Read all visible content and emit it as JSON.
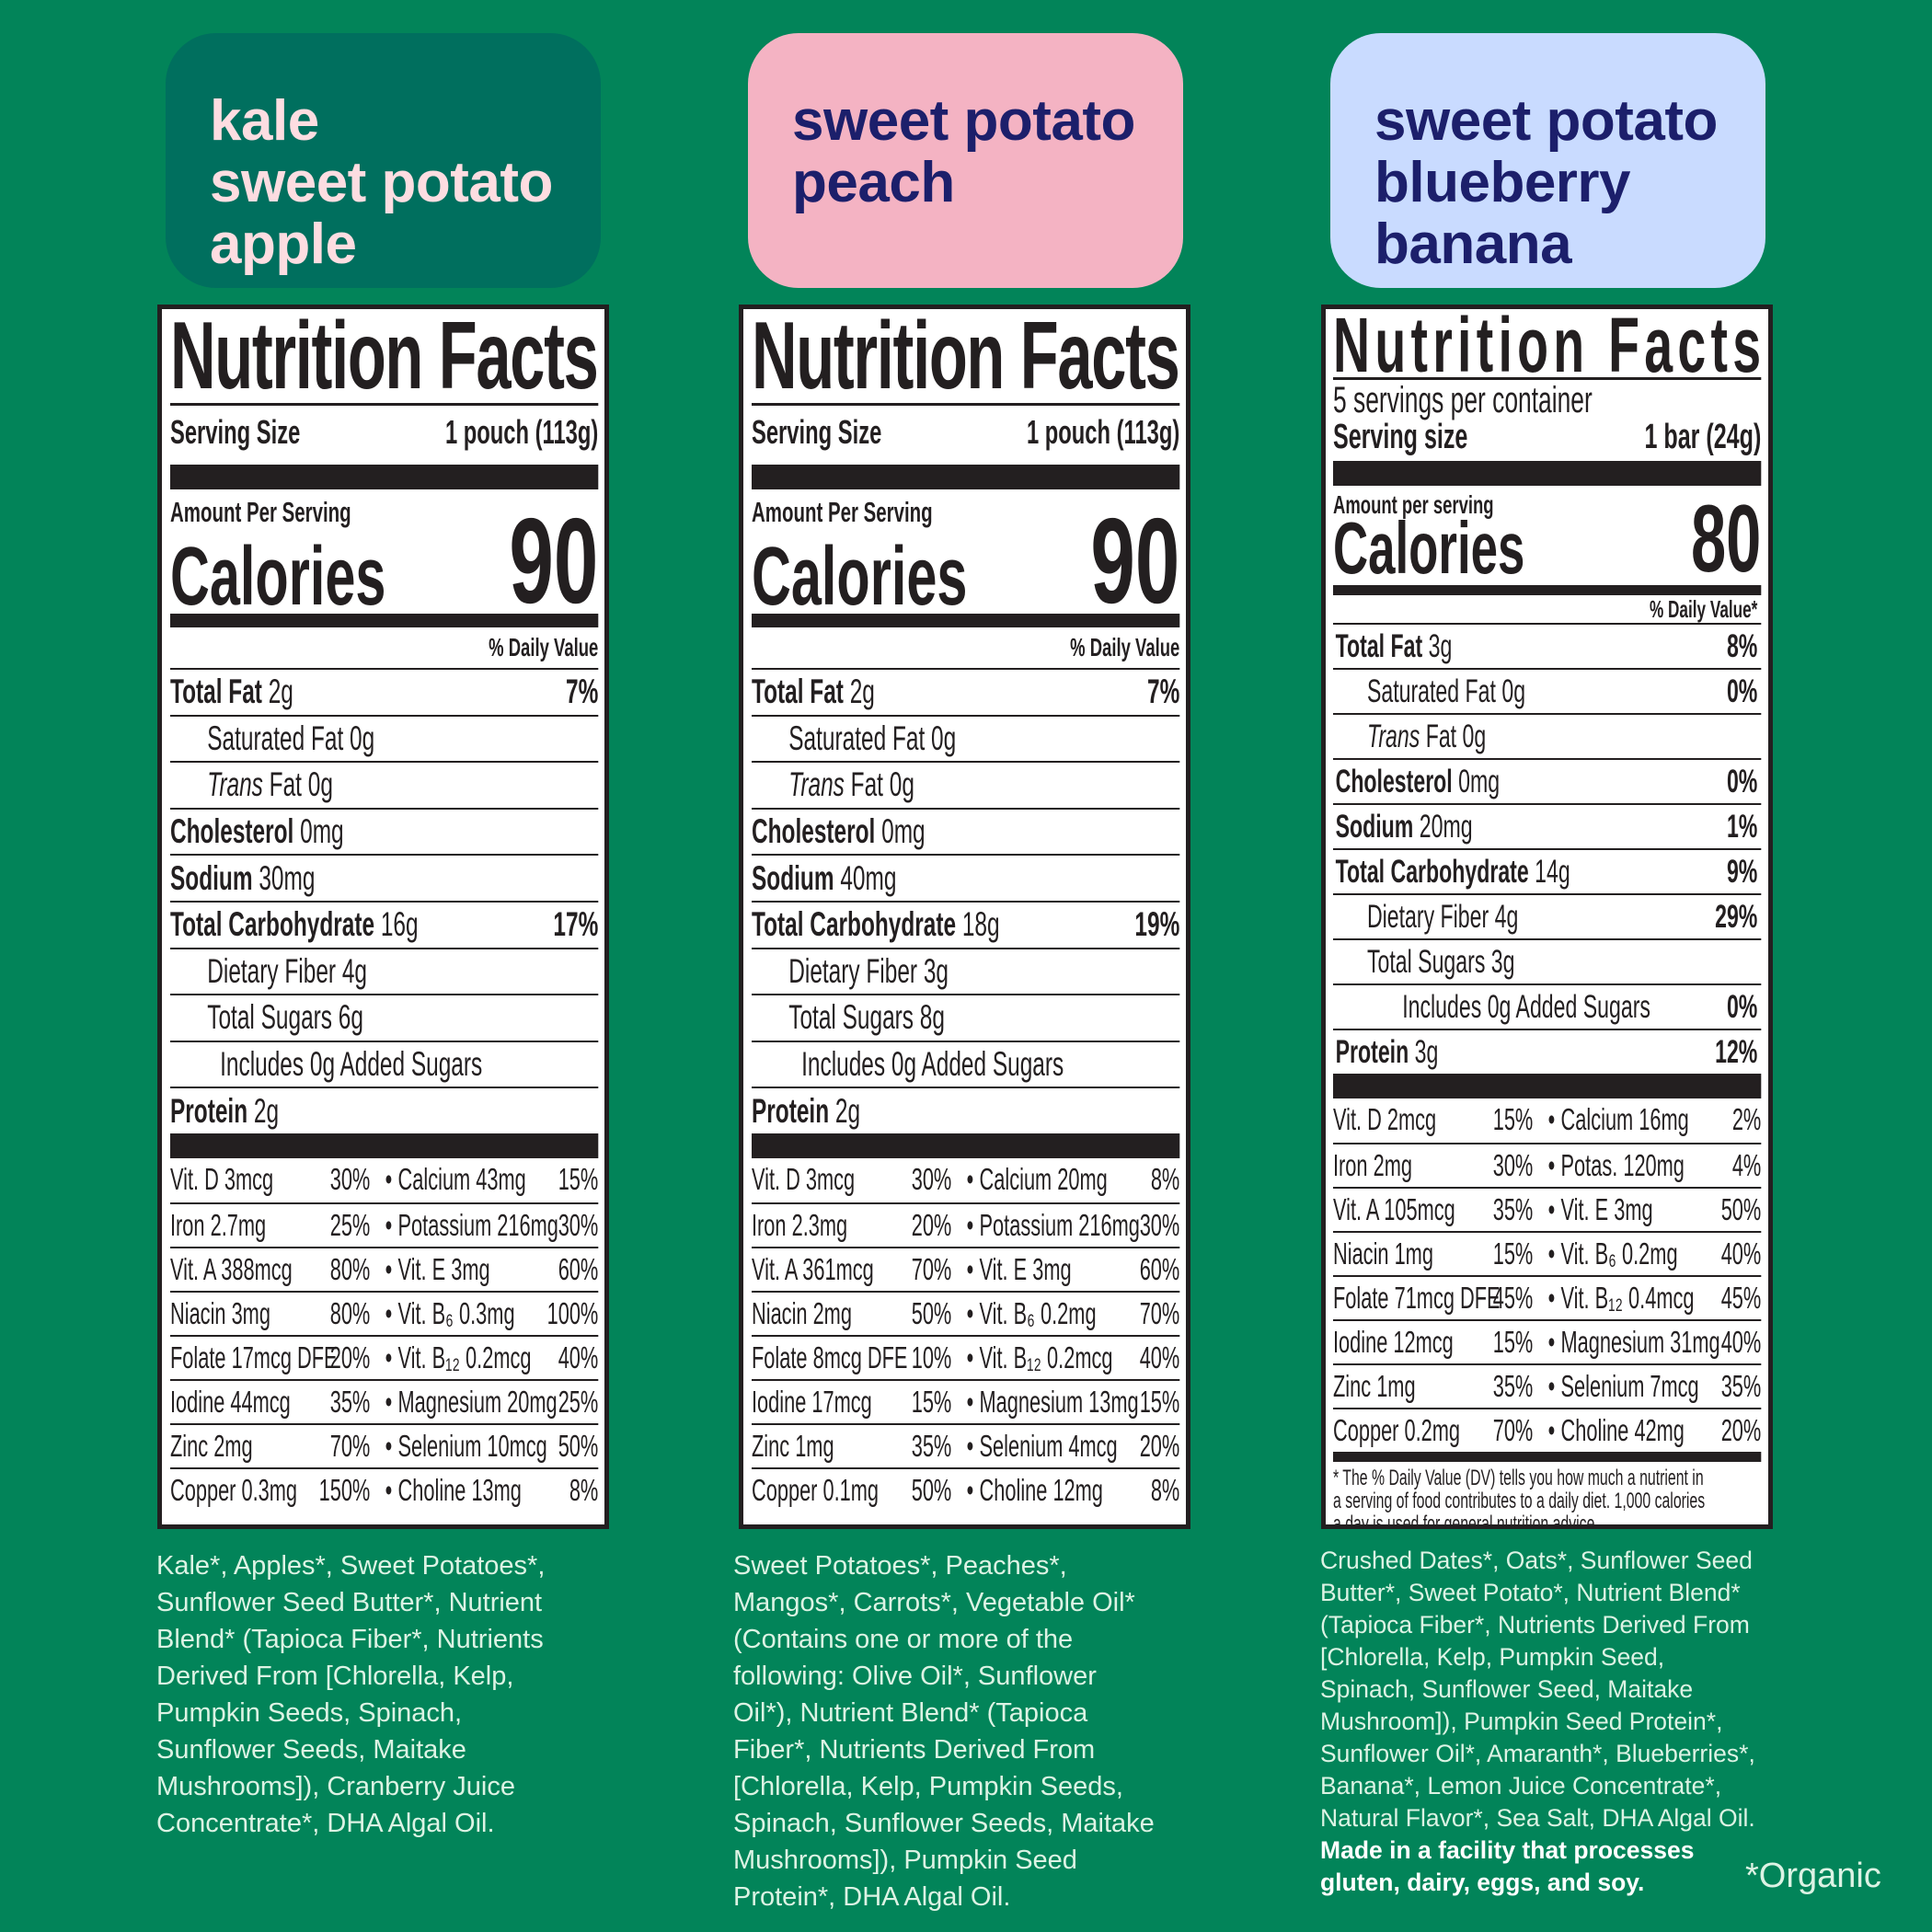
{
  "colors": {
    "background": "#028459",
    "label_ink": "#231f20",
    "ingredient_text": "#dcf3e4"
  },
  "products": [
    {
      "title_lines": [
        "kale",
        "sweet potato",
        "apple"
      ],
      "title_bg": "#006f5e",
      "title_color": "#fddde1",
      "label": {
        "heading": "Nutrition Facts",
        "serving_label": "Serving Size",
        "serving_value": "1 pouch (113g)",
        "amount_label": "Amount Per Serving",
        "calories_label": "Calories",
        "calories": "90",
        "dv_header": "% Daily Value",
        "nutrients": [
          {
            "name": "Total Fat",
            "amount": "2g",
            "dv": "7%",
            "bold": true,
            "level": 0
          },
          {
            "name": "Saturated Fat",
            "amount": "0g",
            "dv": "",
            "level": 1
          },
          {
            "name_italic": "Trans",
            "name": "Fat",
            "amount": "0g",
            "dv": "",
            "level": 1
          },
          {
            "name": "Cholesterol",
            "amount": "0mg",
            "dv": "",
            "bold": true,
            "level": 0
          },
          {
            "name": "Sodium",
            "amount": "30mg",
            "dv": "",
            "bold": true,
            "level": 0
          },
          {
            "name": "Total Carbohydrate",
            "amount": "16g",
            "dv": "17%",
            "bold": true,
            "level": 0
          },
          {
            "name": "Dietary Fiber",
            "amount": "4g",
            "dv": "",
            "level": 1
          },
          {
            "name": "Total Sugars",
            "amount": "6g",
            "dv": "",
            "level": 1
          },
          {
            "name": "Includes 0g Added Sugars",
            "amount": "",
            "dv": "",
            "level": 2
          },
          {
            "name": "Protein",
            "amount": "2g",
            "dv": "",
            "bold": true,
            "level": 0
          }
        ],
        "micros": [
          [
            "Vit. D 3mcg",
            "30%",
            "Calcium 43mg",
            "15%"
          ],
          [
            "Iron 2.7mg",
            "25%",
            "Potassium 216mg",
            "30%"
          ],
          [
            "Vit. A 388mcg",
            "80%",
            "Vit. E 3mg",
            "60%"
          ],
          [
            "Niacin 3mg",
            "80%",
            "Vit. B₆ 0.3mg",
            "100%"
          ],
          [
            "Folate 17mcg DFE",
            "20%",
            "Vit. B₁₂ 0.2mcg",
            "40%"
          ],
          [
            "Iodine 44mcg",
            "35%",
            "Magnesium 20mg",
            "25%"
          ],
          [
            "Zinc 2mg",
            "70%",
            "Selenium 10mcg",
            "50%"
          ],
          [
            "Copper 0.3mg",
            "150%",
            "Choline 13mg",
            "8%"
          ]
        ]
      },
      "ingredients_lines": [
        "Kale*, Apples*, Sweet Potatoes*,",
        "Sunflower Seed Butter*, Nutrient",
        "Blend* (Tapioca Fiber*, Nutrients",
        "Derived From [Chlorella, Kelp,",
        "Pumpkin Seeds, Spinach,",
        "Sunflower Seeds, Maitake",
        "Mushrooms]), Cranberry Juice",
        "Concentrate*, DHA Algal Oil."
      ]
    },
    {
      "title_lines": [
        "sweet potato",
        "peach"
      ],
      "title_bg": "#f4b3c3",
      "title_color": "#1c1f6b",
      "label": {
        "heading": "Nutrition Facts",
        "serving_label": "Serving Size",
        "serving_value": "1 pouch (113g)",
        "amount_label": "Amount Per Serving",
        "calories_label": "Calories",
        "calories": "90",
        "dv_header": "% Daily Value",
        "nutrients": [
          {
            "name": "Total Fat",
            "amount": "2g",
            "dv": "7%",
            "bold": true,
            "level": 0
          },
          {
            "name": "Saturated Fat",
            "amount": "0g",
            "dv": "",
            "level": 1
          },
          {
            "name_italic": "Trans",
            "name": "Fat",
            "amount": "0g",
            "dv": "",
            "level": 1
          },
          {
            "name": "Cholesterol",
            "amount": "0mg",
            "dv": "",
            "bold": true,
            "level": 0
          },
          {
            "name": "Sodium",
            "amount": "40mg",
            "dv": "",
            "bold": true,
            "level": 0
          },
          {
            "name": "Total Carbohydrate",
            "amount": "18g",
            "dv": "19%",
            "bold": true,
            "level": 0
          },
          {
            "name": "Dietary Fiber",
            "amount": "3g",
            "dv": "",
            "level": 1
          },
          {
            "name": "Total Sugars",
            "amount": "8g",
            "dv": "",
            "level": 1
          },
          {
            "name": "Includes 0g Added Sugars",
            "amount": "",
            "dv": "",
            "level": 2
          },
          {
            "name": "Protein",
            "amount": "2g",
            "dv": "",
            "bold": true,
            "level": 0
          }
        ],
        "micros": [
          [
            "Vit. D 3mcg",
            "30%",
            "Calcium 20mg",
            "8%"
          ],
          [
            "Iron 2.3mg",
            "20%",
            "Potassium 216mg",
            "30%"
          ],
          [
            "Vit. A 361mcg",
            "70%",
            "Vit. E 3mg",
            "60%"
          ],
          [
            "Niacin 2mg",
            "50%",
            "Vit. B₆ 0.2mg",
            "70%"
          ],
          [
            "Folate 8mcg DFE",
            "10%",
            "Vit. B₁₂ 0.2mcg",
            "40%"
          ],
          [
            "Iodine 17mcg",
            "15%",
            "Magnesium 13mg",
            "15%"
          ],
          [
            "Zinc 1mg",
            "35%",
            "Selenium 4mcg",
            "20%"
          ],
          [
            "Copper 0.1mg",
            "50%",
            "Choline 12mg",
            "8%"
          ]
        ]
      },
      "ingredients_lines": [
        "Sweet Potatoes*, Peaches*,",
        "Mangos*, Carrots*, Vegetable Oil*",
        "(Contains one or more of the",
        "following: Olive Oil*, Sunflower",
        "Oil*), Nutrient Blend* (Tapioca",
        "Fiber*, Nutrients Derived From",
        "[Chlorella, Kelp, Pumpkin Seeds,",
        "Spinach, Sunflower Seeds, Maitake",
        "Mushrooms]), Pumpkin Seed",
        "Protein*, DHA Algal Oil."
      ]
    },
    {
      "title_lines": [
        "sweet potato",
        "blueberry",
        "banana"
      ],
      "title_bg": "#c9dbff",
      "title_color": "#1c1f6b",
      "label": {
        "heading": "Nutrition Facts",
        "servings_per_container": "5 servings per container",
        "serving_label": "Serving size",
        "serving_value": "1 bar (24g)",
        "amount_label": "Amount per serving",
        "calories_label": "Calories",
        "calories": "80",
        "dv_header": "% Daily Value*",
        "nutrients": [
          {
            "name": "Total Fat",
            "amount": "3g",
            "dv": "8%",
            "bold": true,
            "level": 0
          },
          {
            "name": "Saturated Fat",
            "amount": "0g",
            "dv": "0%",
            "level": 1
          },
          {
            "name_italic": "Trans",
            "name": "Fat",
            "amount": "0g",
            "dv": "",
            "level": 1
          },
          {
            "name": "Cholesterol",
            "amount": "0mg",
            "dv": "0%",
            "bold": true,
            "level": 0
          },
          {
            "name": "Sodium",
            "amount": "20mg",
            "dv": "1%",
            "bold": true,
            "level": 0
          },
          {
            "name": "Total Carbohydrate",
            "amount": "14g",
            "dv": "9%",
            "bold": true,
            "level": 0
          },
          {
            "name": "Dietary Fiber",
            "amount": "4g",
            "dv": "29%",
            "level": 1
          },
          {
            "name": "Total Sugars",
            "amount": "3g",
            "dv": "",
            "level": 1
          },
          {
            "name": "Includes 0g Added Sugars",
            "amount": "",
            "dv": "0%",
            "level": 2
          },
          {
            "name": "Protein",
            "amount": "3g",
            "dv": "12%",
            "bold": true,
            "level": 0
          }
        ],
        "micros": [
          [
            "Vit. D 2mcg",
            "15%",
            "Calcium 16mg",
            "2%"
          ],
          [
            "Iron 2mg",
            "30%",
            "Potas. 120mg",
            "4%"
          ],
          [
            "Vit. A 105mcg",
            "35%",
            "Vit. E 3mg",
            "50%"
          ],
          [
            "Niacin 1mg",
            "15%",
            "Vit. B₆ 0.2mg",
            "40%"
          ],
          [
            "Folate 71mcg DFE",
            "45%",
            "Vit. B₁₂ 0.4mcg",
            "45%"
          ],
          [
            "Iodine 12mcg",
            "15%",
            "Magnesium 31mg",
            "40%"
          ],
          [
            "Zinc 1mg",
            "35%",
            "Selenium 7mcg",
            "35%"
          ],
          [
            "Copper 0.2mg",
            "70%",
            "Choline 42mg",
            "20%"
          ]
        ],
        "footnote_lines": [
          "* The % Daily Value (DV) tells you how much a nutrient in",
          "a serving of food contributes to a daily diet. 1,000 calories",
          "a day is used for general nutrition advice."
        ]
      },
      "ingredients_lines": [
        "Crushed Dates*, Oats*, Sunflower Seed",
        "Butter*, Sweet Potato*, Nutrient Blend*",
        "(Tapioca Fiber*, Nutrients Derived From",
        "[Chlorella, Kelp, Pumpkin Seed,",
        "Spinach, Sunflower Seed, Maitake",
        "Mushroom]), Pumpkin Seed Protein*,",
        "Sunflower Oil*, Amaranth*, Blueberries*,",
        "Banana*, Lemon Juice Concentrate*,",
        "Natural Flavor*, Sea Salt, DHA Algal Oil."
      ],
      "allergen_lines": [
        "Made in a facility that processes",
        "gluten, dairy, eggs, and soy."
      ]
    }
  ],
  "organic_note": "*Organic"
}
